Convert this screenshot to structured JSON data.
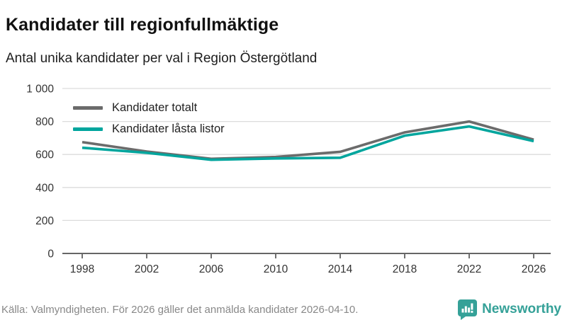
{
  "header": {
    "title": "Kandidater till regionfullmäktige",
    "subtitle": "Antal unika kandidater per val i Region Östergötland"
  },
  "chart_data": {
    "type": "line",
    "x": [
      1998,
      2002,
      2006,
      2010,
      2014,
      2018,
      2022,
      2026
    ],
    "series": [
      {
        "name": "Kandidater totalt",
        "color": "#6b6b6b",
        "values": [
          675,
          618,
          574,
          585,
          616,
          734,
          800,
          690
        ]
      },
      {
        "name": "Kandidater låsta listor",
        "color": "#00a59d",
        "values": [
          641,
          610,
          568,
          576,
          580,
          714,
          770,
          681
        ]
      }
    ],
    "ylim": [
      0,
      1000
    ],
    "ytick_step": 200,
    "ytick_labels": [
      "0",
      "200",
      "400",
      "600",
      "800",
      "1 000"
    ],
    "xtick_labels": [
      "1998",
      "2002",
      "2006",
      "2010",
      "2014",
      "2018",
      "2022",
      "2026"
    ],
    "grid": "horizontal",
    "legend_position": "top-left",
    "gridline_color": "#dcdcdc",
    "axis_color": "#333333",
    "tick_label_color": "#333333"
  },
  "footer": {
    "source": "Källa: Valmyndigheten. För 2026 gäller det anmälda kandidater 2026-04-10.",
    "brand": "Newsworthy",
    "brand_color": "#35a198"
  }
}
